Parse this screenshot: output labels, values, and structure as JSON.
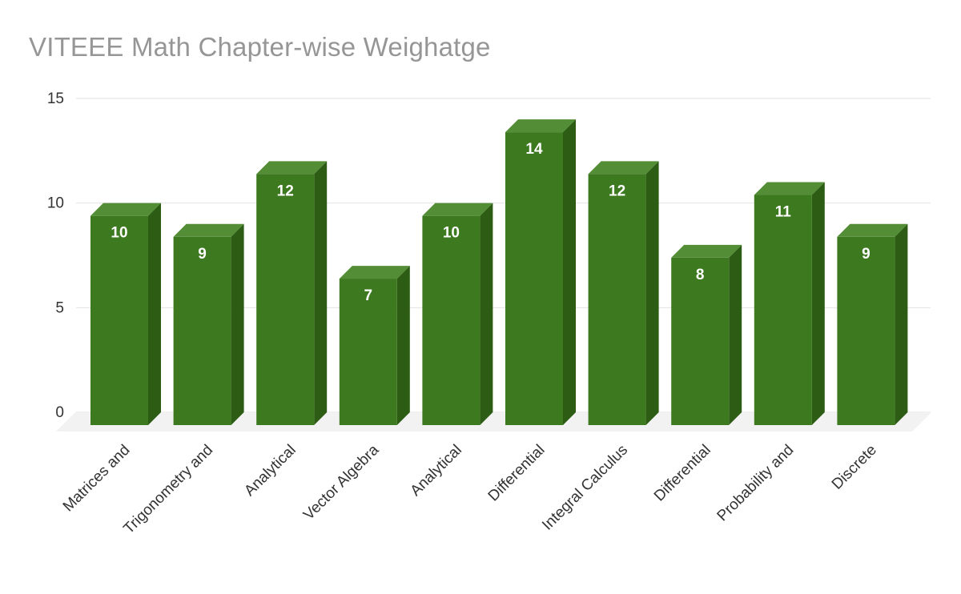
{
  "chart_data": {
    "type": "bar",
    "style": "3d-column",
    "title": "VITEEE Math Chapter-wise Weighatge",
    "categories": [
      "Matrices and",
      "Trigonometry and",
      "Analytical",
      "Vector Algebra",
      "Analytical",
      "Differential",
      "Integral Calculus",
      "Differential",
      "Probability and",
      "Discrete"
    ],
    "values": [
      10,
      9,
      12,
      7,
      10,
      14,
      12,
      8,
      11,
      9
    ],
    "xlabel": "",
    "ylabel": "",
    "ylim": [
      0,
      15
    ],
    "yticks": [
      0,
      5,
      10,
      15
    ],
    "grid": true,
    "legend": false,
    "value_labels_shown": true,
    "colors": {
      "bar_front": "#3c791f",
      "bar_top": "#538e36",
      "bar_side": "#2d5d14",
      "value_label": "#ffffff",
      "title": "#969696",
      "axis_label": "#333333",
      "gridline": "#e2e2e2",
      "floor": "#f2f2f2",
      "background": "#ffffff"
    }
  }
}
